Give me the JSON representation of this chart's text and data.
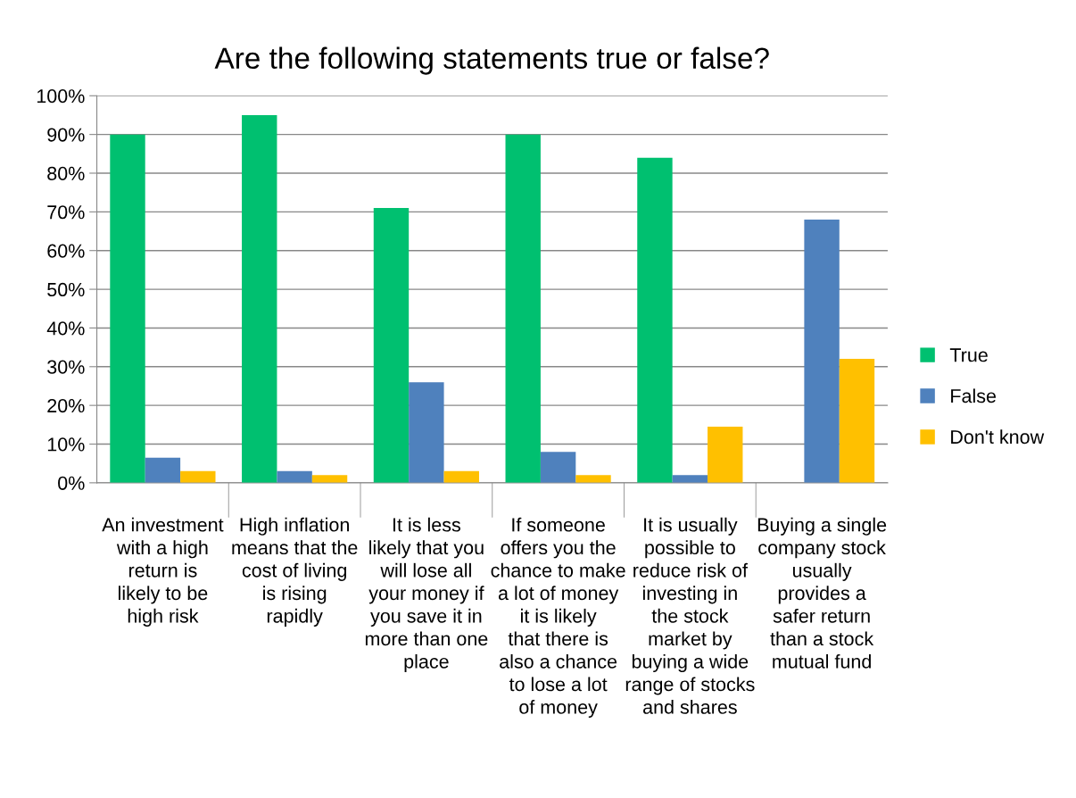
{
  "chart_data": {
    "type": "bar",
    "title": "Are the following statements true or false?",
    "categories": [
      "An investment with a high return is likely to be high risk",
      "High inflation means that the cost of living is rising rapidly",
      "It is less likely that you will lose all your money if you save it in more than one place",
      "If someone offers you the chance to make a lot of money it is likely that there is also a chance to lose a lot of money",
      "It is usually possible to reduce risk of investing in the stock market by buying a wide range of stocks and shares",
      "Buying a single company stock usually provides a safer return than a stock mutual fund"
    ],
    "series": [
      {
        "name": "True",
        "color": "#00c070",
        "values": [
          90,
          95,
          71,
          90,
          84,
          0
        ]
      },
      {
        "name": "False",
        "color": "#4f81bd",
        "values": [
          6.5,
          3,
          26,
          8,
          2,
          68
        ]
      },
      {
        "name": "Don't know",
        "color": "#ffc000",
        "values": [
          3,
          2,
          3,
          2,
          14.5,
          32
        ]
      }
    ],
    "ylim": [
      0,
      100
    ],
    "yticks": [
      {
        "value": 0,
        "label": "0%"
      },
      {
        "value": 10,
        "label": "10%"
      },
      {
        "value": 20,
        "label": "20%"
      },
      {
        "value": 30,
        "label": "30%"
      },
      {
        "value": 40,
        "label": "40%"
      },
      {
        "value": 50,
        "label": "50%"
      },
      {
        "value": 60,
        "label": "60%"
      },
      {
        "value": 70,
        "label": "70%"
      },
      {
        "value": 80,
        "label": "80%"
      },
      {
        "value": 90,
        "label": "90%"
      },
      {
        "value": 100,
        "label": "100%"
      }
    ],
    "grid": "y",
    "legend": "right"
  }
}
